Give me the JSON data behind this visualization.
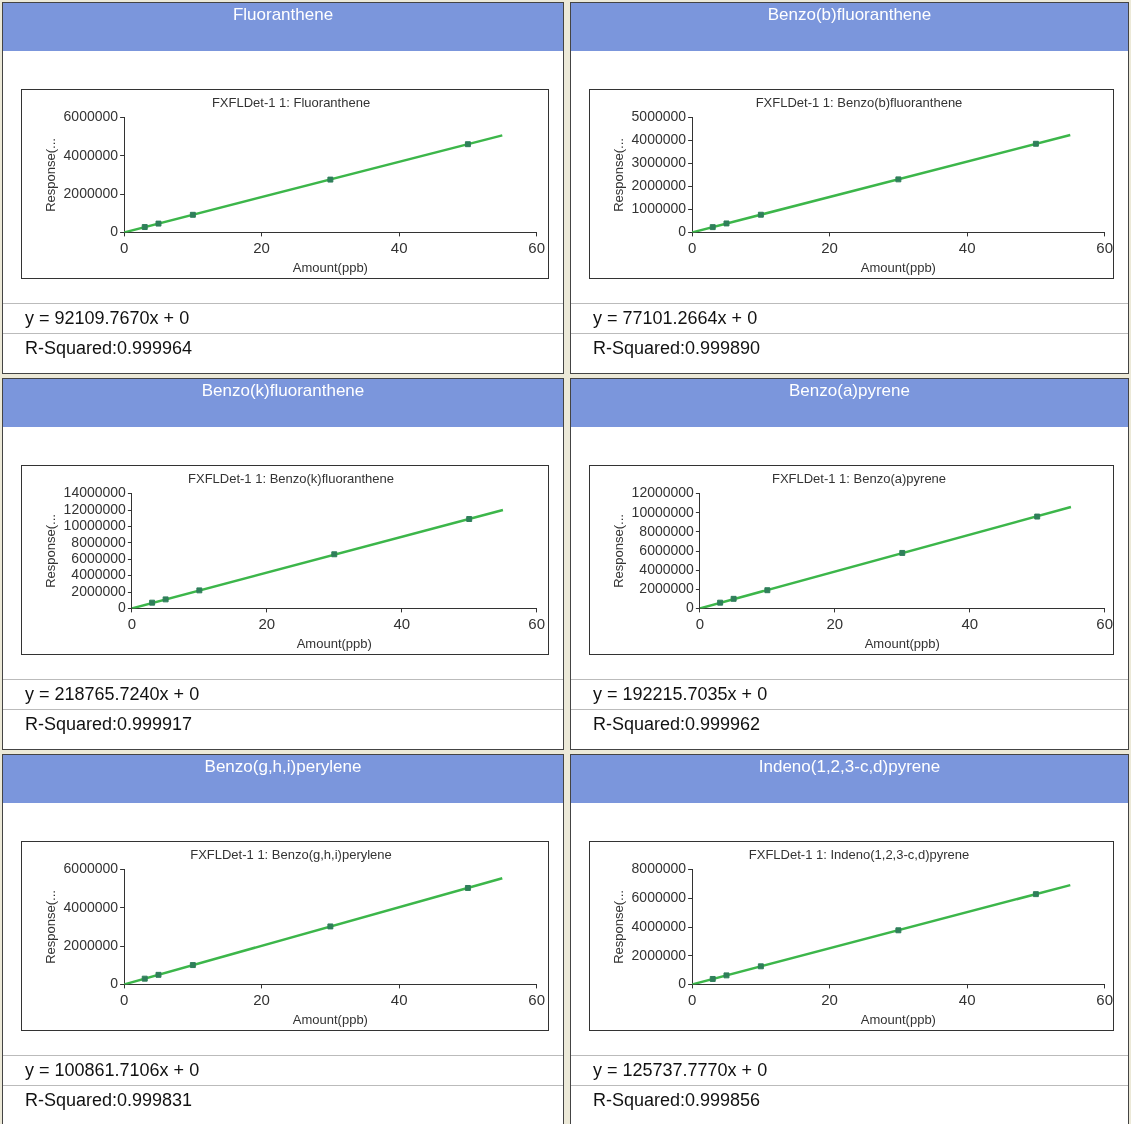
{
  "chart_data": [
    {
      "type": "scatter",
      "title": "Fluoranthene",
      "subtitle": "FXFLDet-1 1: Fluoranthene",
      "xlabel": "Amount(ppb)",
      "ylabel": "Response(...",
      "xlim": [
        0,
        60
      ],
      "xticks": [
        0,
        20,
        40,
        60
      ],
      "ylim": [
        0,
        6000000
      ],
      "yticks": [
        0,
        2000000,
        4000000,
        6000000
      ],
      "grid": false,
      "legend": false,
      "series": [
        {
          "type": "scatter",
          "marker": "square",
          "color": "#2f7f5a",
          "x": [
            3,
            5,
            10,
            30,
            50
          ],
          "values": [
            280000,
            460000,
            920000,
            2760000,
            4610000
          ]
        },
        {
          "type": "line",
          "marker": "none",
          "color": "#3cb64a",
          "x": [
            0,
            55
          ],
          "values": [
            0,
            5070000
          ]
        }
      ],
      "annotations": [
        "y = 92109.7670x + 0",
        "R-Squared:0.999964"
      ]
    },
    {
      "type": "scatter",
      "title": "Benzo(b)fluoranthene",
      "subtitle": "FXFLDet-1 1: Benzo(b)fluoranthene",
      "xlabel": "Amount(ppb)",
      "ylabel": "Response(...",
      "xlim": [
        0,
        60
      ],
      "xticks": [
        0,
        20,
        40,
        60
      ],
      "ylim": [
        0,
        5000000
      ],
      "yticks": [
        0,
        1000000,
        2000000,
        3000000,
        4000000,
        5000000
      ],
      "grid": false,
      "legend": false,
      "series": [
        {
          "type": "scatter",
          "marker": "square",
          "color": "#2f7f5a",
          "x": [
            3,
            5,
            10,
            30,
            50
          ],
          "values": [
            230000,
            390000,
            770000,
            2310000,
            3860000
          ]
        },
        {
          "type": "line",
          "marker": "none",
          "color": "#3cb64a",
          "x": [
            0,
            55
          ],
          "values": [
            0,
            4240000
          ]
        }
      ],
      "annotations": [
        "y = 77101.2664x + 0",
        "R-Squared:0.999890"
      ]
    },
    {
      "type": "scatter",
      "title": "Benzo(k)fluoranthene",
      "subtitle": "FXFLDet-1 1: Benzo(k)fluoranthene",
      "xlabel": "Amount(ppb)",
      "ylabel": "Response(...",
      "xlim": [
        0,
        60
      ],
      "xticks": [
        0,
        20,
        40,
        60
      ],
      "ylim": [
        0,
        14000000
      ],
      "yticks": [
        0,
        2000000,
        4000000,
        6000000,
        8000000,
        10000000,
        12000000,
        14000000
      ],
      "grid": false,
      "legend": false,
      "series": [
        {
          "type": "scatter",
          "marker": "square",
          "color": "#2f7f5a",
          "x": [
            3,
            5,
            10,
            30,
            50
          ],
          "values": [
            700000,
            1100000,
            2200000,
            6600000,
            10900000
          ]
        },
        {
          "type": "line",
          "marker": "none",
          "color": "#3cb64a",
          "x": [
            0,
            55
          ],
          "values": [
            0,
            12000000
          ]
        }
      ],
      "annotations": [
        "y = 218765.7240x + 0",
        "R-Squared:0.999917"
      ]
    },
    {
      "type": "scatter",
      "title": "Benzo(a)pyrene",
      "subtitle": "FXFLDet-1 1: Benzo(a)pyrene",
      "xlabel": "Amount(ppb)",
      "ylabel": "Response(...",
      "xlim": [
        0,
        60
      ],
      "xticks": [
        0,
        20,
        40,
        60
      ],
      "ylim": [
        0,
        12000000
      ],
      "yticks": [
        0,
        2000000,
        4000000,
        6000000,
        8000000,
        10000000,
        12000000
      ],
      "grid": false,
      "legend": false,
      "series": [
        {
          "type": "scatter",
          "marker": "square",
          "color": "#2f7f5a",
          "x": [
            3,
            5,
            10,
            30,
            50
          ],
          "values": [
            600000,
            1000000,
            1900000,
            5800000,
            9600000
          ]
        },
        {
          "type": "line",
          "marker": "none",
          "color": "#3cb64a",
          "x": [
            0,
            55
          ],
          "values": [
            0,
            10600000
          ]
        }
      ],
      "annotations": [
        "y = 192215.7035x + 0",
        "R-Squared:0.999962"
      ]
    },
    {
      "type": "scatter",
      "title": "Benzo(g,h,i)perylene",
      "subtitle": "FXFLDet-1 1: Benzo(g,h,i)perylene",
      "xlabel": "Amount(ppb)",
      "ylabel": "Response(...",
      "xlim": [
        0,
        60
      ],
      "xticks": [
        0,
        20,
        40,
        60
      ],
      "ylim": [
        0,
        6000000
      ],
      "yticks": [
        0,
        2000000,
        4000000,
        6000000
      ],
      "grid": false,
      "legend": false,
      "series": [
        {
          "type": "scatter",
          "marker": "square",
          "color": "#2f7f5a",
          "x": [
            3,
            5,
            10,
            30,
            50
          ],
          "values": [
            300000,
            500000,
            1010000,
            3030000,
            5040000
          ]
        },
        {
          "type": "line",
          "marker": "none",
          "color": "#3cb64a",
          "x": [
            0,
            55
          ],
          "values": [
            0,
            5550000
          ]
        }
      ],
      "annotations": [
        "y = 100861.7106x + 0",
        "R-Squared:0.999831"
      ]
    },
    {
      "type": "scatter",
      "title": "Indeno(1,2,3-c,d)pyrene",
      "subtitle": "FXFLDet-1 1: Indeno(1,2,3-c,d)pyrene",
      "xlabel": "Amount(ppb)",
      "ylabel": "Response(...",
      "xlim": [
        0,
        60
      ],
      "xticks": [
        0,
        20,
        40,
        60
      ],
      "ylim": [
        0,
        8000000
      ],
      "yticks": [
        0,
        2000000,
        4000000,
        6000000,
        8000000
      ],
      "grid": false,
      "legend": false,
      "series": [
        {
          "type": "scatter",
          "marker": "square",
          "color": "#2f7f5a",
          "x": [
            3,
            5,
            10,
            30,
            50
          ],
          "values": [
            380000,
            630000,
            1260000,
            3770000,
            6290000
          ]
        },
        {
          "type": "line",
          "marker": "none",
          "color": "#3cb64a",
          "x": [
            0,
            55
          ],
          "values": [
            0,
            6920000
          ]
        }
      ],
      "annotations": [
        "y = 125737.7770x + 0",
        "R-Squared:0.999856"
      ]
    }
  ]
}
